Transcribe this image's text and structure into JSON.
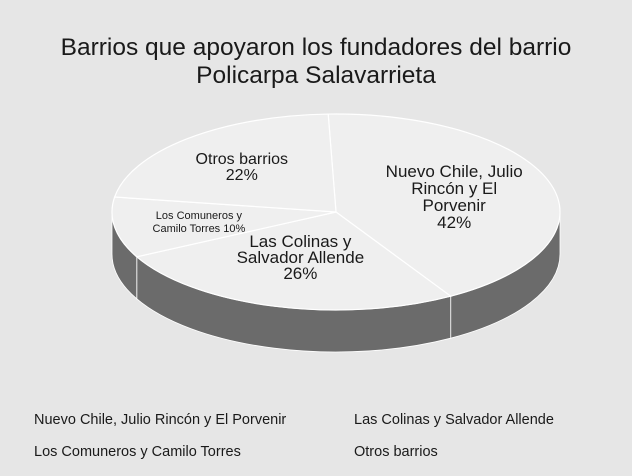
{
  "chart_data": {
    "type": "pie",
    "title_lines": [
      "Barrios que apoyaron los fundadores del barrio",
      "Policarpa Salavarrieta"
    ],
    "categories": [
      "Nuevo Chile, Julio Rincón y El Porvenir",
      "Las Colinas y Salvador Allende",
      "Los Comuneros y Camilo Torres",
      "Otros barrios"
    ],
    "values": [
      42,
      26,
      10,
      22
    ],
    "unit": "%",
    "data_labels": [
      [
        "Nuevo Chile, Julio",
        "Rincón y El",
        "Porvenir",
        "42%"
      ],
      [
        "Las Colinas y",
        "Salvador Allende",
        "26%"
      ],
      [
        "Los Comuneros y",
        "Camilo Torres 10%"
      ],
      [
        "Otros barrios",
        "22%"
      ]
    ],
    "legend": {
      "position": "bottom",
      "entries": [
        "Nuevo Chile, Julio Rincón y El Porvenir",
        "Las Colinas y Salvador Allende",
        "Los Comuneros y Camilo Torres",
        "Otros barrios"
      ]
    },
    "colors": {
      "slice_top": "#efefef",
      "slice_side": "#6b6b6b",
      "edge": "#ffffff",
      "background": "#e6e6e6"
    }
  }
}
